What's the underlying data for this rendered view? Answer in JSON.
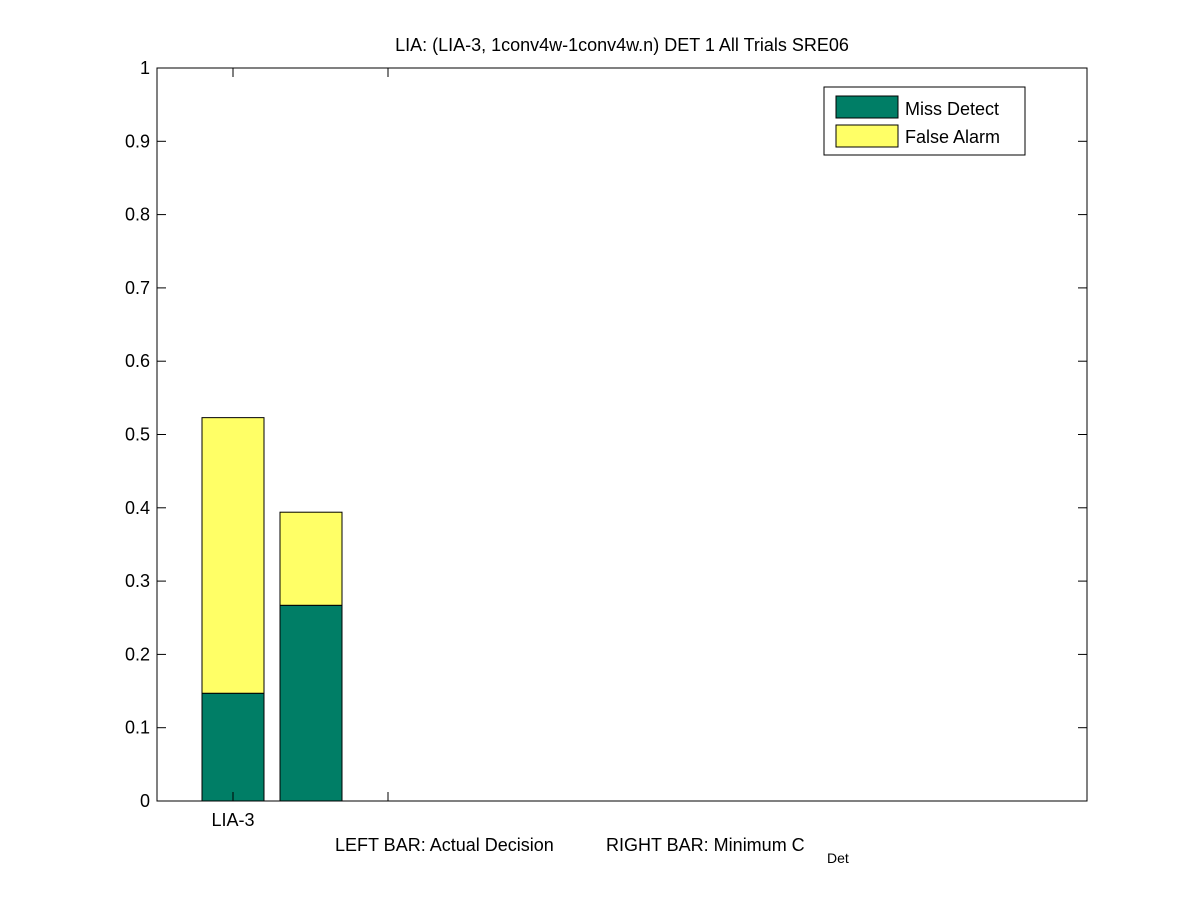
{
  "chart_data": {
    "type": "bar",
    "stacked": true,
    "title": "LIA: (LIA-3, 1conv4w-1conv4w.n) DET 1 All Trials SRE06",
    "xlabel": {
      "left": "LEFT BAR: Actual Decision",
      "right": "RIGHT BAR: Minimum C",
      "right_subscript": "Det"
    },
    "ylabel": "",
    "ylim": [
      0,
      1
    ],
    "yticks": [
      "0",
      "0.1",
      "0.2",
      "0.3",
      "0.4",
      "0.5",
      "0.6",
      "0.7",
      "0.8",
      "0.9",
      "1"
    ],
    "categories": [
      "LIA-3"
    ],
    "bars": [
      {
        "category": "LIA-3",
        "which": "Actual Decision",
        "miss_detect": 0.147,
        "false_alarm": 0.376
      },
      {
        "category": "LIA-3",
        "which": "Minimum C_Det",
        "miss_detect": 0.267,
        "false_alarm": 0.127
      }
    ],
    "series": [
      {
        "name": "Miss Detect",
        "color": "#007e66"
      },
      {
        "name": "False Alarm",
        "color": "#ffff66"
      }
    ],
    "legend_position": "top-right",
    "grid": false
  }
}
